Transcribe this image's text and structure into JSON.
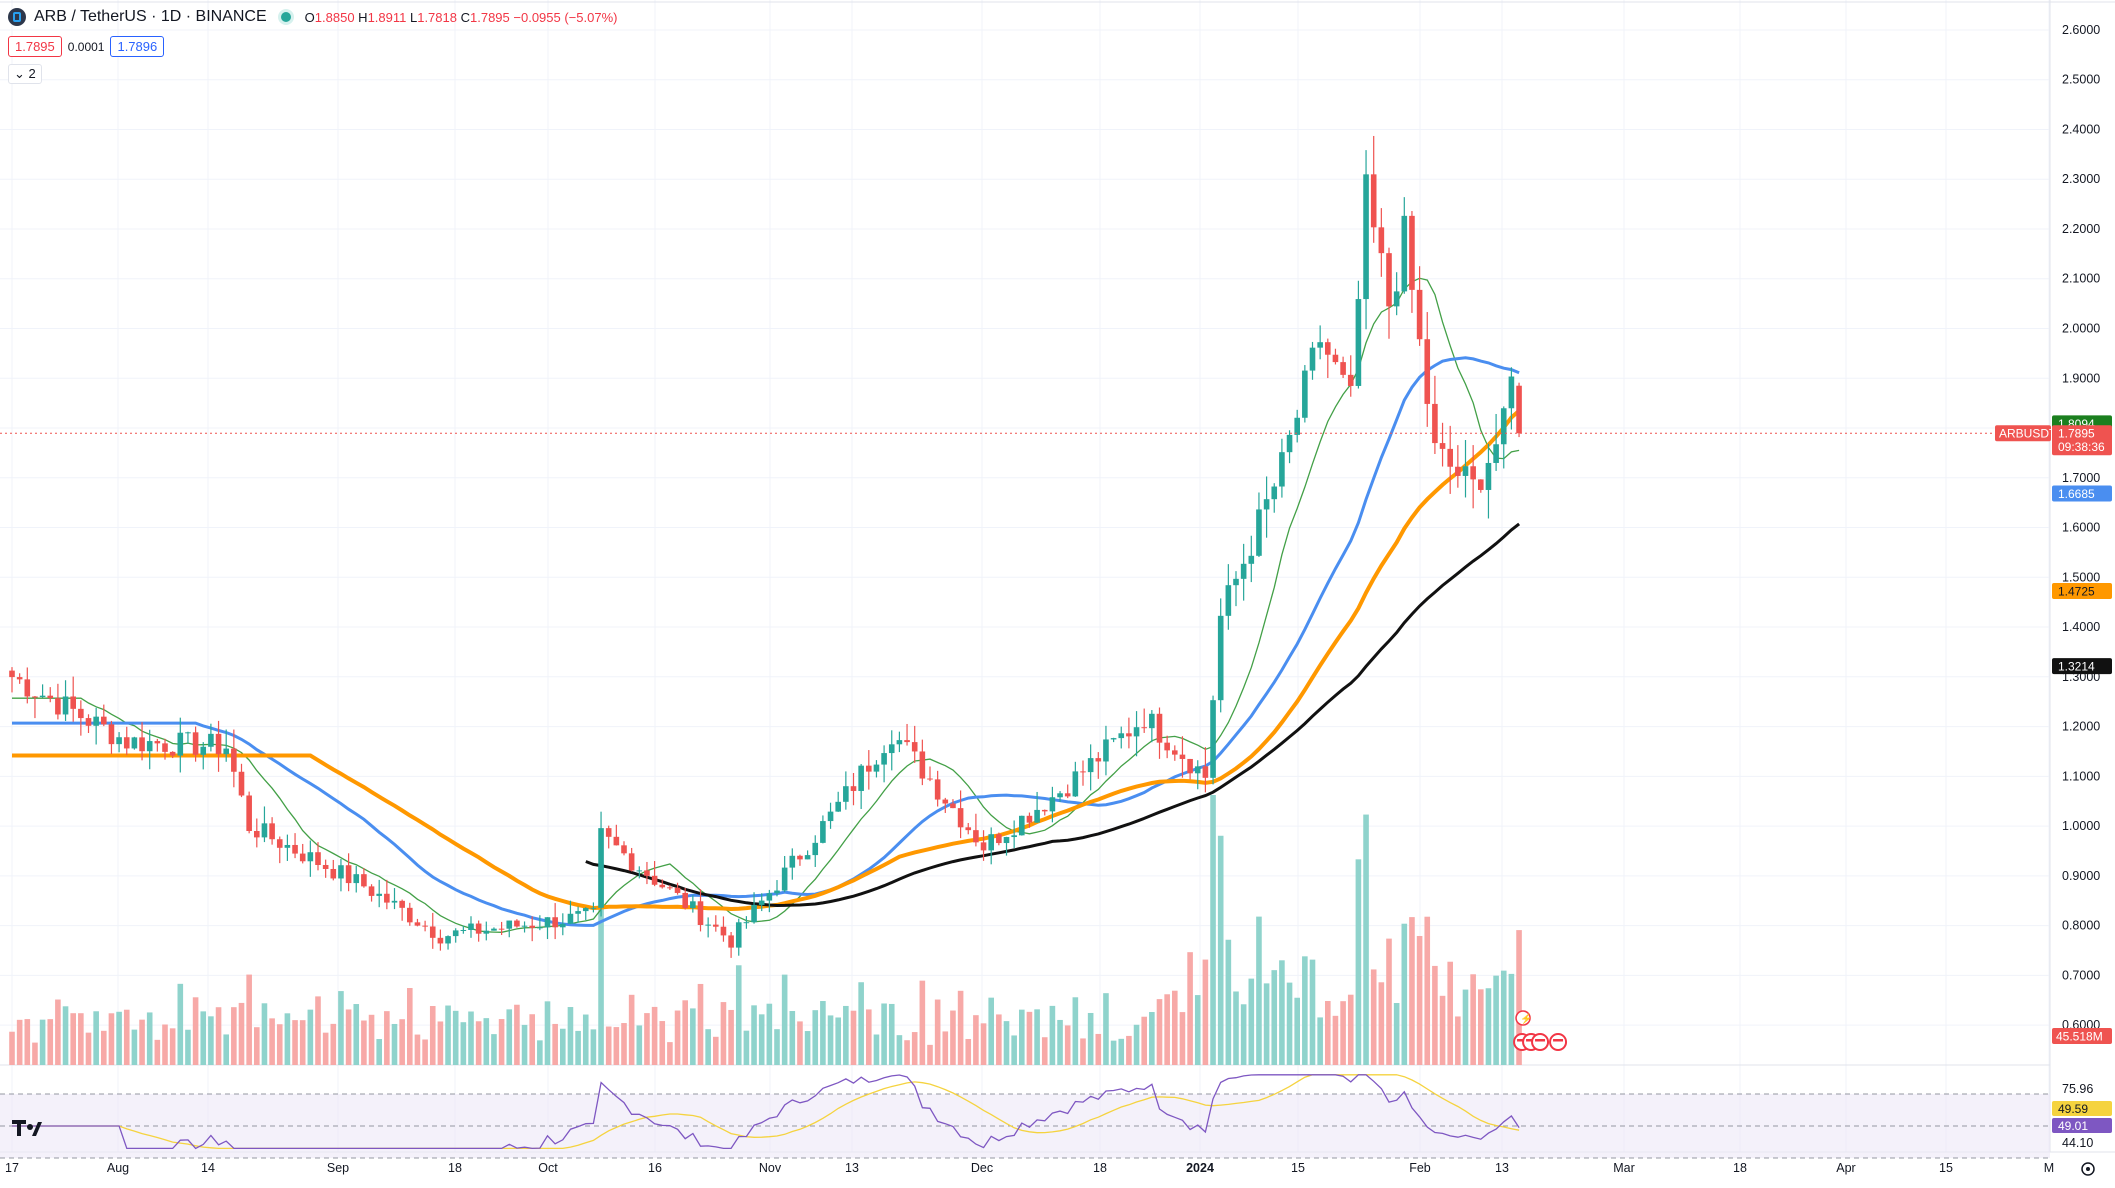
{
  "header": {
    "symbol_label": "ARB / TetherUS · 1D · BINANCE",
    "ohlc": {
      "open_label": "O",
      "open": "1.8850",
      "high_label": "H",
      "high": "1.8911",
      "low_label": "L",
      "low": "1.7818",
      "close_label": "C",
      "close": "1.7895",
      "change": "−0.0955 (−5.07%)"
    },
    "bid": "1.7895",
    "spread": "0.0001",
    "ask": "1.7896",
    "indicators_collapsed": "2"
  },
  "colors": {
    "up": "#26a69a",
    "down": "#ef5350",
    "ma_thin": "#43a047",
    "ma_blue": "#4a8ef0",
    "ma_orange": "#ff9800",
    "ma_black": "#111111",
    "rsi_line": "#7e57c2",
    "rsi_ma": "#f5d33f"
  },
  "chart_data": {
    "type": "candlestick",
    "symbol": "ARBUSDT",
    "timeframe": "1D",
    "exchange": "BINANCE",
    "ylim": [
      0.55,
      2.62
    ],
    "y_ticks": [
      "2.6000",
      "2.5000",
      "2.4000",
      "2.3000",
      "2.2000",
      "2.1000",
      "2.0000",
      "1.9000",
      "1.8000",
      "1.7000",
      "1.6000",
      "1.5000",
      "1.4000",
      "1.3000",
      "1.2000",
      "1.1000",
      "1.0000",
      "0.9000",
      "0.8000",
      "0.7000",
      "0.6000"
    ],
    "x_ticks": [
      "17",
      "Aug",
      "14",
      "Sep",
      "18",
      "Oct",
      "16",
      "Nov",
      "13",
      "Dec",
      "18",
      "2024",
      "15",
      "Feb",
      "13",
      "Mar",
      "18",
      "Apr",
      "15",
      "M"
    ],
    "key_points": [
      {
        "date": "Jul 17",
        "close": 1.3
      },
      {
        "date": "Aug 1",
        "close": 1.17
      },
      {
        "date": "Aug 14",
        "close": 1.16
      },
      {
        "date": "Aug 17",
        "close": 1.0
      },
      {
        "date": "Sep 1",
        "close": 0.88
      },
      {
        "date": "Sep 11",
        "close": 0.78
      },
      {
        "date": "Oct 1",
        "close": 0.82
      },
      {
        "date": "Oct 2",
        "close": 0.98
      },
      {
        "date": "Oct 19",
        "close": 0.77
      },
      {
        "date": "Nov 1",
        "close": 1.02
      },
      {
        "date": "Nov 9",
        "close": 1.19
      },
      {
        "date": "Nov 21",
        "close": 0.96
      },
      {
        "date": "Dec 1",
        "close": 1.07
      },
      {
        "date": "Dec 12",
        "close": 1.22
      },
      {
        "date": "Dec 20",
        "close": 1.1
      },
      {
        "date": "Dec 22",
        "close": 1.42
      },
      {
        "date": "Dec 30",
        "close": 1.72
      },
      {
        "date": "Jan 4",
        "close": 1.98
      },
      {
        "date": "Jan 8",
        "close": 1.85
      },
      {
        "date": "Jan 10",
        "close": 2.26
      },
      {
        "date": "Jan 13",
        "close": 2.05
      },
      {
        "date": "Jan 15",
        "close": 2.18
      },
      {
        "date": "Jan 19",
        "close": 1.75
      },
      {
        "date": "Jan 24",
        "close": 1.68
      },
      {
        "date": "Jan 28",
        "close": 1.8
      },
      {
        "date": "Jan 29",
        "close": 1.89
      },
      {
        "date": "Jan 30",
        "close": 1.7895
      }
    ],
    "ma_values_last": {
      "ma_thin": "1.8094",
      "ma_blue": "1.6685",
      "ma_orange": "1.4725",
      "ma_black": "1.3214"
    },
    "price_tag": {
      "symbol": "ARBUSDT",
      "price": "1.7895",
      "countdown": "09:38:36"
    },
    "volume_last": "45.518M",
    "rsi": {
      "levels": [
        "75.96",
        "49.59",
        "49.01",
        "44.10"
      ],
      "value": "49.01",
      "ma": "49.59"
    }
  }
}
